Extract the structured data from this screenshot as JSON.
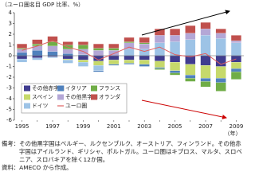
{
  "chart_data": {
    "type": "bar",
    "stacked": true,
    "unit_label": "（ユーロ圏名目 GDP 比率、%）",
    "x_label": "（年）",
    "categories": [
      "1995",
      null,
      "1997",
      null,
      "1999",
      null,
      "2001",
      null,
      "2003",
      null,
      "2005",
      null,
      "2007",
      null,
      "2009"
    ],
    "ylim": [
      -6,
      4
    ],
    "yticks": [
      4,
      3,
      2,
      1,
      0,
      -1,
      -2,
      -3,
      -4,
      -5,
      -6
    ],
    "series": [
      {
        "name": "その他赤字国",
        "color": "#403c8f",
        "values": [
          -0.3,
          -0.2,
          -0.1,
          -0.3,
          -0.4,
          -0.5,
          -0.4,
          -0.4,
          -0.4,
          -0.5,
          -0.6,
          -0.8,
          -0.9,
          -1.0,
          -0.6
        ]
      },
      {
        "name": "スペイン",
        "color": "#c6d96b",
        "values": [
          0.0,
          0.0,
          0.0,
          -0.1,
          -0.2,
          -0.4,
          -0.4,
          -0.3,
          -0.4,
          -0.6,
          -0.8,
          -1.0,
          -1.2,
          -1.1,
          -0.6
        ]
      },
      {
        "name": "ドイツ",
        "color": "#9dc3e6",
        "values": [
          -0.3,
          -0.2,
          -0.1,
          -0.3,
          -0.4,
          -0.5,
          0.0,
          0.6,
          0.6,
          1.2,
          1.3,
          1.5,
          1.9,
          1.6,
          1.2
        ]
      },
      {
        "name": "イタリア",
        "color": "#4f81bd",
        "values": [
          0.3,
          0.5,
          0.4,
          0.2,
          0.1,
          -0.1,
          -0.1,
          -0.1,
          -0.2,
          -0.1,
          -0.2,
          -0.3,
          -0.3,
          -0.4,
          -0.3
        ]
      },
      {
        "name": "その他黒字国",
        "color": "#b4a7d6",
        "values": [
          0.3,
          0.4,
          0.5,
          0.4,
          0.5,
          0.5,
          0.5,
          0.6,
          0.5,
          0.7,
          0.6,
          0.6,
          0.6,
          0.5,
          0.2
        ]
      },
      {
        "name": "ユーロ圏",
        "color": "#e06060",
        "type": "line",
        "values": [
          0.5,
          0.9,
          1.4,
          0.8,
          0.4,
          -0.4,
          0.2,
          0.8,
          0.4,
          0.8,
          0.1,
          -0.1,
          0.2,
          -0.8,
          -0.3
        ]
      },
      {
        "name": "フランス",
        "color": "#70ad47",
        "values": [
          0.1,
          0.2,
          0.4,
          0.4,
          0.4,
          0.2,
          0.2,
          0.1,
          0.1,
          -0.1,
          -0.2,
          -0.3,
          -0.5,
          -0.8,
          -0.7
        ]
      },
      {
        "name": "オランダ",
        "color": "#c0504d",
        "values": [
          0.4,
          0.4,
          0.5,
          0.3,
          0.3,
          0.4,
          0.4,
          0.4,
          0.5,
          0.6,
          0.6,
          0.7,
          0.6,
          0.4,
          0.5
        ]
      }
    ]
  },
  "notes": {
    "remarks": "備考：その他黒字国はベルギー、ルクセンブルク、オーストリア、フィンランド。その他赤字国はアイルランド、ギリシャ、ポルトガル。ユーロ圏はキプロス、マルタ、スロベニア、スロバキアを除く12か国。",
    "source": "資料：AMECO から作成。"
  }
}
